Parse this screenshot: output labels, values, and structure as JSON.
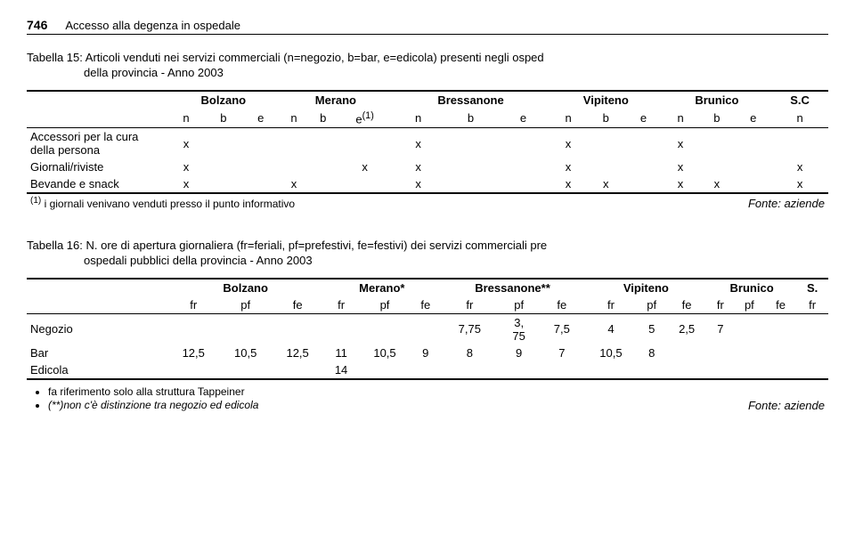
{
  "header": {
    "page_number": "746",
    "title": "Accesso alla degenza in ospedale"
  },
  "table15": {
    "caption_line1": "Tabella 15: Articoli venduti nei servizi commerciali (n=negozio, b=bar, e=edicola) presenti negli osped",
    "caption_line2": "della provincia - Anno 2003",
    "cities": [
      "Bolzano",
      "Merano",
      "Bressanone",
      "Vipiteno",
      "Brunico",
      "S.C"
    ],
    "sub_normal": [
      "n",
      "b",
      "e"
    ],
    "sub_sup": "(1)",
    "rows": [
      {
        "label": "Accessori per la cura della persona",
        "cells": [
          "x",
          "",
          "",
          "",
          "",
          "",
          "x",
          "",
          "",
          "x",
          "",
          "",
          "x",
          "",
          "",
          ""
        ]
      },
      {
        "label": "Giornali/riviste",
        "cells": [
          "x",
          "",
          "",
          "",
          "",
          "x",
          "x",
          "",
          "",
          "x",
          "",
          "",
          "x",
          "",
          "",
          "x"
        ]
      },
      {
        "label": "Bevande e snack",
        "cells": [
          "x",
          "",
          "",
          "x",
          "",
          "",
          "x",
          "",
          "",
          "x",
          "x",
          "",
          "x",
          "x",
          "",
          "x"
        ]
      }
    ],
    "footnote_sup": "(1)",
    "footnote": " i giornali venivano venduti presso il punto informativo",
    "source": "Fonte: aziende"
  },
  "table16": {
    "caption_line1": "Tabella 16: N. ore di apertura giornaliera (fr=feriali, pf=prefestivi, fe=festivi) dei servizi commerciali pre",
    "caption_line2": "ospedali pubblici della provincia - Anno 2003",
    "cities": [
      "Bolzano",
      "Merano*",
      "Bressanone**",
      "Vipiteno",
      "Brunico",
      "S."
    ],
    "sub": [
      "fr",
      "pf",
      "fe"
    ],
    "rows": [
      {
        "label": "Negozio",
        "cells": [
          "",
          "",
          "",
          "",
          "",
          "",
          "7,75",
          "3,\n75",
          "7,5",
          "4",
          "5",
          "2,5",
          "7",
          "",
          "",
          ""
        ]
      },
      {
        "label": "Bar",
        "cells": [
          "12,5",
          "10,5",
          "12,5",
          "11",
          "10,5",
          "9",
          "8",
          "9",
          "7",
          "10,5",
          "8",
          "",
          "",
          "",
          "",
          ""
        ]
      },
      {
        "label": "Edicola",
        "cells": [
          "",
          "",
          "",
          "14",
          "",
          "",
          "",
          "",
          "",
          "",
          "",
          "",
          "",
          "",
          "",
          ""
        ]
      }
    ],
    "bullets": [
      "fa riferimento solo alla struttura Tappeiner",
      "(**)non c'è distinzione tra negozio ed edicola"
    ],
    "source": "Fonte: aziende"
  }
}
